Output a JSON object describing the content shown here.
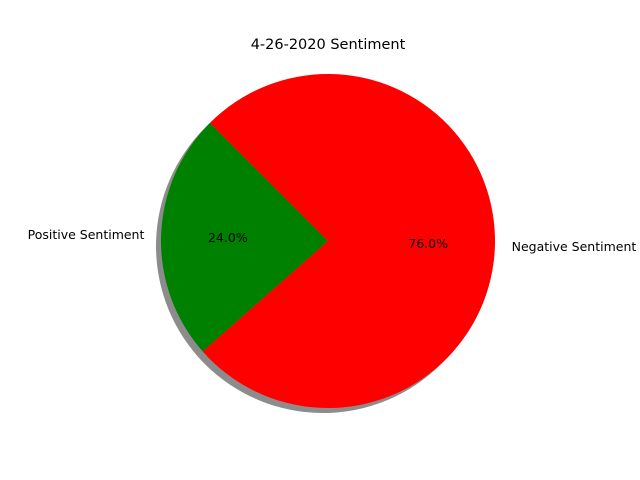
{
  "chart_data": {
    "type": "pie",
    "title": "4-26-2020 Sentiment",
    "slices": [
      {
        "label": "Positive Sentiment",
        "value": 24.0,
        "pct_label": "24.0%",
        "color": "#008000"
      },
      {
        "label": "Negative Sentiment",
        "value": 76.0,
        "pct_label": "76.0%",
        "color": "#ff0000"
      }
    ],
    "start_angle_deg": 135,
    "direction": "counterclockwise",
    "shadow": true
  }
}
